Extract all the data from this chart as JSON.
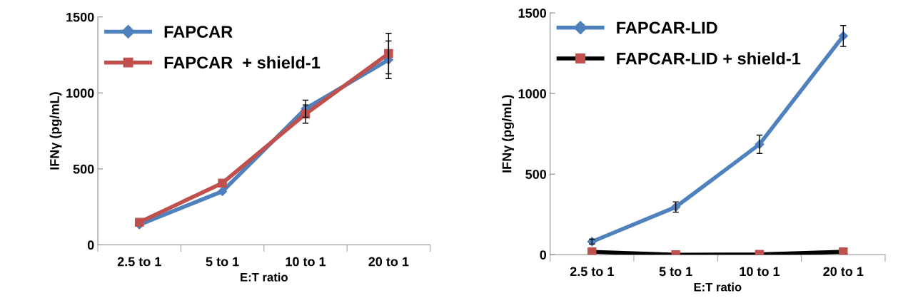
{
  "chart_data": [
    {
      "type": "line",
      "categories": [
        "2.5 to 1",
        "5 to 1",
        "10 to 1",
        "20 to 1"
      ],
      "xlabel": "E:T ratio",
      "ylabel": "IFNγ (pg/mL)",
      "ylim": [
        0,
        1500
      ],
      "yticks": [
        0,
        500,
        1000,
        1500
      ],
      "legend": "top left",
      "grid": false,
      "series": [
        {
          "name": "FAPCAR",
          "color": "#4f81bd",
          "marker": "diamond",
          "values": [
            133,
            352,
            896,
            1218
          ],
          "errors": [
            null,
            null,
            56,
            124
          ]
        },
        {
          "name": "FAPCAR  + shield-1",
          "color": "#c0504d",
          "marker": "square",
          "values": [
            149,
            407,
            861,
            1259
          ],
          "errors": [
            null,
            null,
            60,
            133
          ]
        }
      ]
    },
    {
      "type": "line",
      "categories": [
        "2.5 to 1",
        "5 to 1",
        "10 to 1",
        "20 to 1"
      ],
      "xlabel": "E:T ratio",
      "ylabel": "IFNγ (pg/mL)",
      "ylim": [
        0,
        1500
      ],
      "yticks": [
        0,
        500,
        1000,
        1500
      ],
      "legend": "top left",
      "grid": false,
      "series": [
        {
          "name": "FAPCAR-LID",
          "color": "#4f81bd",
          "marker": "diamond",
          "values": [
            81,
            296,
            685,
            1357
          ],
          "errors": [
            15,
            32,
            57,
            65
          ]
        },
        {
          "name": "FAPCAR-LID + shield-1",
          "color": "#000000",
          "colors": [
            "#c0504d",
            "#c0504d",
            "#c0504d",
            "#c0504d"
          ],
          "marker": "square",
          "values": [
            18,
            0,
            2,
            18
          ]
        }
      ]
    }
  ]
}
